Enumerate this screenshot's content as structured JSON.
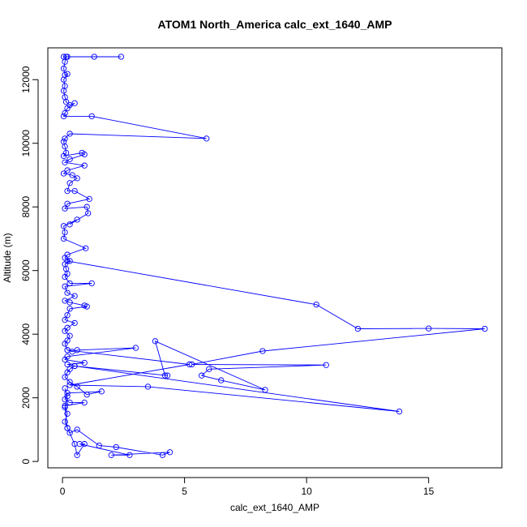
{
  "chart_data": {
    "type": "line",
    "title": "ATOM1 North_America calc_ext_1640_AMP",
    "xlabel": "calc_ext_1640_AMP",
    "ylabel": "Altitude (m)",
    "xlim": [
      -0.6,
      18.0
    ],
    "ylim": [
      -200,
      13000
    ],
    "xticks": [
      0,
      5,
      10,
      15
    ],
    "yticks": [
      0,
      2000,
      4000,
      6000,
      8000,
      10000,
      12000
    ],
    "grid": false,
    "legend": "none",
    "line_style": "line-with-open-circles",
    "color": "#0000ff",
    "series": [
      {
        "points": [
          [
            0.05,
            12720
          ],
          [
            0.2,
            12720
          ],
          [
            1.3,
            12720
          ],
          [
            2.4,
            12720
          ],
          [
            0.15,
            12720
          ],
          [
            0.1,
            12560
          ],
          [
            0.05,
            12350
          ],
          [
            0.1,
            12150
          ],
          [
            0.2,
            12180
          ],
          [
            0.05,
            12000
          ],
          [
            0.1,
            11800
          ],
          [
            0.05,
            11650
          ],
          [
            0.1,
            11450
          ],
          [
            0.15,
            11300
          ],
          [
            0.3,
            11200
          ],
          [
            0.5,
            11260
          ],
          [
            0.2,
            11100
          ],
          [
            0.1,
            10950
          ],
          [
            0.05,
            10850
          ],
          [
            1.2,
            10850
          ],
          [
            5.9,
            10150
          ],
          [
            0.3,
            10300
          ],
          [
            0.1,
            10150
          ],
          [
            0.05,
            10050
          ],
          [
            0.1,
            9900
          ],
          [
            0.15,
            9700
          ],
          [
            0.05,
            9600
          ],
          [
            0.8,
            9700
          ],
          [
            0.9,
            9650
          ],
          [
            0.3,
            9500
          ],
          [
            0.1,
            9400
          ],
          [
            0.9,
            9300
          ],
          [
            0.2,
            9150
          ],
          [
            0.05,
            9050
          ],
          [
            0.4,
            9000
          ],
          [
            0.6,
            8900
          ],
          [
            0.3,
            8750
          ],
          [
            0.2,
            8500
          ],
          [
            0.5,
            8500
          ],
          [
            1.1,
            8250
          ],
          [
            0.2,
            8100
          ],
          [
            0.1,
            7950
          ],
          [
            1.0,
            8000
          ],
          [
            1.05,
            7800
          ],
          [
            0.3,
            7450
          ],
          [
            0.6,
            7600
          ],
          [
            0.05,
            7400
          ],
          [
            0.1,
            7200
          ],
          [
            0.05,
            7000
          ],
          [
            0.95,
            6700
          ],
          [
            0.2,
            6500
          ],
          [
            0.1,
            6400
          ],
          [
            0.3,
            6300
          ],
          [
            0.1,
            6200
          ],
          [
            0.15,
            6050
          ],
          [
            0.2,
            5900
          ],
          [
            0.1,
            5800
          ],
          [
            0.3,
            5600
          ],
          [
            1.2,
            5600
          ],
          [
            0.1,
            5500
          ],
          [
            0.2,
            5300
          ],
          [
            0.5,
            5200
          ],
          [
            0.1,
            5050
          ],
          [
            0.3,
            5000
          ],
          [
            0.9,
            4900
          ],
          [
            1.0,
            4870
          ],
          [
            0.3,
            4800
          ],
          [
            0.2,
            4600
          ],
          [
            0.1,
            4450
          ],
          [
            0.5,
            4350
          ],
          [
            0.2,
            4200
          ],
          [
            0.1,
            4100
          ],
          [
            0.3,
            3950
          ],
          [
            0.2,
            3800
          ],
          [
            0.1,
            3700
          ],
          [
            0.2,
            3500
          ],
          [
            0.4,
            3450
          ],
          [
            0.6,
            3500
          ],
          [
            3.0,
            3570
          ],
          [
            0.2,
            3300
          ],
          [
            0.1,
            3200
          ],
          [
            0.9,
            3100
          ],
          [
            0.2,
            3050
          ],
          [
            0.5,
            3000
          ],
          [
            0.3,
            2900
          ],
          [
            0.2,
            2800
          ],
          [
            0.1,
            2650
          ],
          [
            0.3,
            2500
          ],
          [
            0.6,
            2350
          ],
          [
            1.0,
            2100
          ],
          [
            1.6,
            2200
          ],
          [
            0.2,
            2150
          ],
          [
            0.1,
            1950
          ],
          [
            0.3,
            1850
          ],
          [
            0.9,
            1850
          ],
          [
            0.1,
            1750
          ],
          [
            0.2,
            1500
          ],
          [
            0.1,
            1250
          ],
          [
            0.2,
            1050
          ],
          [
            0.3,
            900
          ],
          [
            0.6,
            1000
          ],
          [
            1.5,
            500
          ],
          [
            2.2,
            450
          ],
          [
            4.1,
            200
          ],
          [
            4.4,
            290
          ],
          [
            2.0,
            200
          ],
          [
            2.75,
            200
          ],
          [
            0.7,
            550
          ],
          [
            0.9,
            550
          ],
          [
            0.6,
            200
          ],
          [
            0.5,
            550
          ],
          [
            0.2,
            1050
          ],
          [
            0.1,
            1700
          ],
          [
            0.2,
            2050
          ],
          [
            0.1,
            2300
          ]
        ]
      },
      {
        "points": [
          [
            0.2,
            6300
          ],
          [
            10.4,
            4930
          ],
          [
            12.1,
            4170
          ],
          [
            15.0,
            4180
          ],
          [
            17.3,
            4170
          ],
          [
            8.2,
            3470
          ],
          [
            5.3,
            3050
          ],
          [
            10.8,
            3030
          ],
          [
            6.0,
            2900
          ],
          [
            5.7,
            2700
          ],
          [
            6.5,
            2550
          ],
          [
            8.3,
            2250
          ],
          [
            3.8,
            3780
          ],
          [
            4.2,
            2700
          ],
          [
            4.3,
            2700
          ],
          [
            0.5,
            3000
          ],
          [
            13.8,
            1570
          ],
          [
            3.5,
            2350
          ],
          [
            0.3,
            2400
          ],
          [
            5.2,
            3050
          ],
          [
            0.2,
            3500
          ]
        ]
      }
    ]
  }
}
